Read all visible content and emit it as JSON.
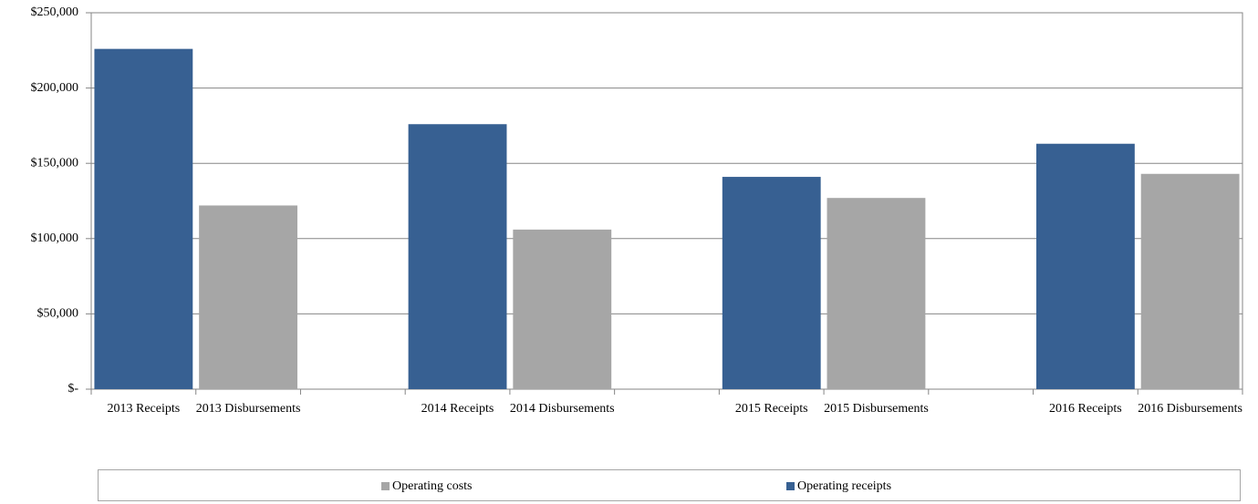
{
  "chart_data": {
    "type": "bar",
    "categories": [
      "2013 Receipts",
      "2013 Disbursements",
      null,
      "2014 Receipts",
      "2014 Disbursements",
      null,
      "2015 Receipts",
      "2015 Disbursements",
      null,
      "2016 Receipts",
      "2016 Disbursements"
    ],
    "series": [
      {
        "name": "Operating costs",
        "color": "#a6a6a6",
        "values": [
          null,
          122000,
          null,
          null,
          106000,
          null,
          null,
          127000,
          null,
          null,
          143000
        ]
      },
      {
        "name": "Operating receipts",
        "color": "#376092",
        "values": [
          226000,
          null,
          null,
          176000,
          null,
          null,
          141000,
          null,
          null,
          163000,
          null
        ]
      }
    ],
    "ylim": [
      0,
      250000
    ],
    "yticks": [
      {
        "value": 0,
        "label": "$-"
      },
      {
        "value": 50000,
        "label": "$50,000"
      },
      {
        "value": 100000,
        "label": "$100,000"
      },
      {
        "value": 150000,
        "label": "$150,000"
      },
      {
        "value": 200000,
        "label": "$200,000"
      },
      {
        "value": 250000,
        "label": "$250,000"
      }
    ],
    "grid": true,
    "legend": "bottom"
  }
}
